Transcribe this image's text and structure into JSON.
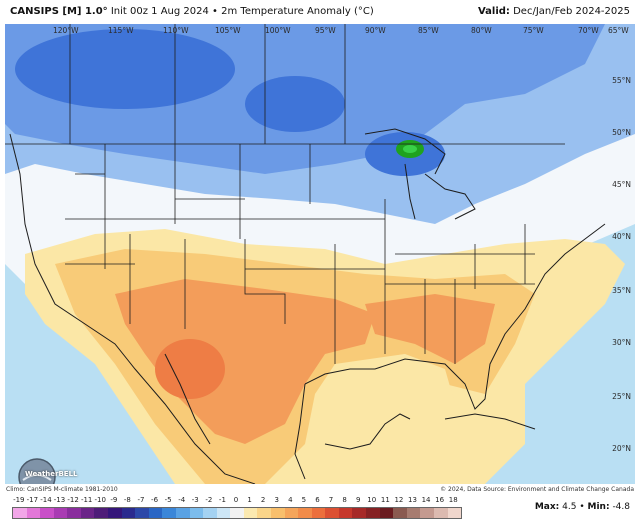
{
  "header": {
    "model": "CANSIPS [M] 1.0°",
    "init": "Init 00z 1 Aug 2024",
    "field": "2m Temperature Anomaly (°C)",
    "valid_label": "Valid:",
    "valid_value": "Dec/Jan/Feb 2024-2025"
  },
  "map": {
    "lon_labels": [
      "120°W",
      "115°W",
      "110°W",
      "105°W",
      "100°W",
      "95°W",
      "90°W",
      "85°W",
      "80°W",
      "75°W",
      "70°W",
      "65°W"
    ],
    "lat_labels": [
      "55°N",
      "50°N",
      "45°N",
      "40°N",
      "35°N",
      "30°N",
      "25°N",
      "20°N"
    ],
    "colors": {
      "ocean": "#b9dff3",
      "strong_cold": "#3f74d8",
      "cold": "#6b9ae6",
      "cool": "#99c0f0",
      "neutral": "#f3f7fb",
      "warm_light": "#fbe7a6",
      "warm": "#f8cb78",
      "hot": "#f39d5a",
      "hotter": "#ee7d45",
      "green_core": "#1fa21f"
    }
  },
  "logo": {
    "text": "WeatherBELL"
  },
  "footer": {
    "left": "Climo: CanSIPS M-climate 1981-2010",
    "right": "© 2024, Data Source: Environment and Climate Change Canada"
  },
  "colorbar": {
    "ticks": [
      "-19",
      "-17",
      "-14",
      "-13",
      "-12",
      "-11",
      "-10",
      "-9",
      "-8",
      "-7",
      "-6",
      "-5",
      "-4",
      "-3",
      "-2",
      "-1",
      "0",
      "1",
      "2",
      "3",
      "4",
      "5",
      "6",
      "7",
      "8",
      "9",
      "10",
      "11",
      "12",
      "13",
      "14",
      "16",
      "18"
    ],
    "colors": [
      "#f2a6e8",
      "#e377d8",
      "#c94fc8",
      "#a93bb3",
      "#8a2d9d",
      "#6b2488",
      "#4e1c78",
      "#35167a",
      "#2a2a8e",
      "#2c48a8",
      "#2a66c4",
      "#3b86d8",
      "#5aa2e4",
      "#7cbcec",
      "#a4d2f2",
      "#cde6f6",
      "#f2f2f2",
      "#fbe9b0",
      "#fad58a",
      "#f8bf6c",
      "#f5a55a",
      "#f28c4a",
      "#ec6f3c",
      "#dc5032",
      "#c6382c",
      "#a62a28",
      "#862224",
      "#6a1c20",
      "#8a5a50",
      "#a77c70",
      "#c49a90",
      "#dcbab0",
      "#f0d6cc"
    ]
  },
  "stats": {
    "max_label": "Max:",
    "max_value": "4.5",
    "min_label": "Min:",
    "min_value": "-4.8"
  }
}
